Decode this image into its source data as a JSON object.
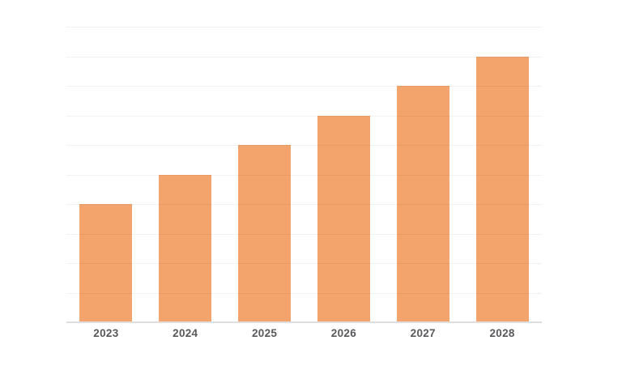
{
  "chart_data": {
    "type": "bar",
    "title": "",
    "xlabel": "",
    "ylabel": "",
    "categories": [
      "2023",
      "2024",
      "2025",
      "2026",
      "2027",
      "2028"
    ],
    "values": [
      4,
      5,
      6,
      7,
      8,
      9
    ],
    "ylim": [
      0,
      10
    ],
    "gridline_step": 1,
    "grid": "horizontal",
    "y_axis_tick_labels_visible": false,
    "legend": "none",
    "colors": {
      "bar": "#F2A46C",
      "gridline": "rgba(0,0,0,0.05)",
      "axis_line": "#DEDEDE",
      "x_label_text": "#58595B",
      "background": "#FFFFFF"
    }
  }
}
